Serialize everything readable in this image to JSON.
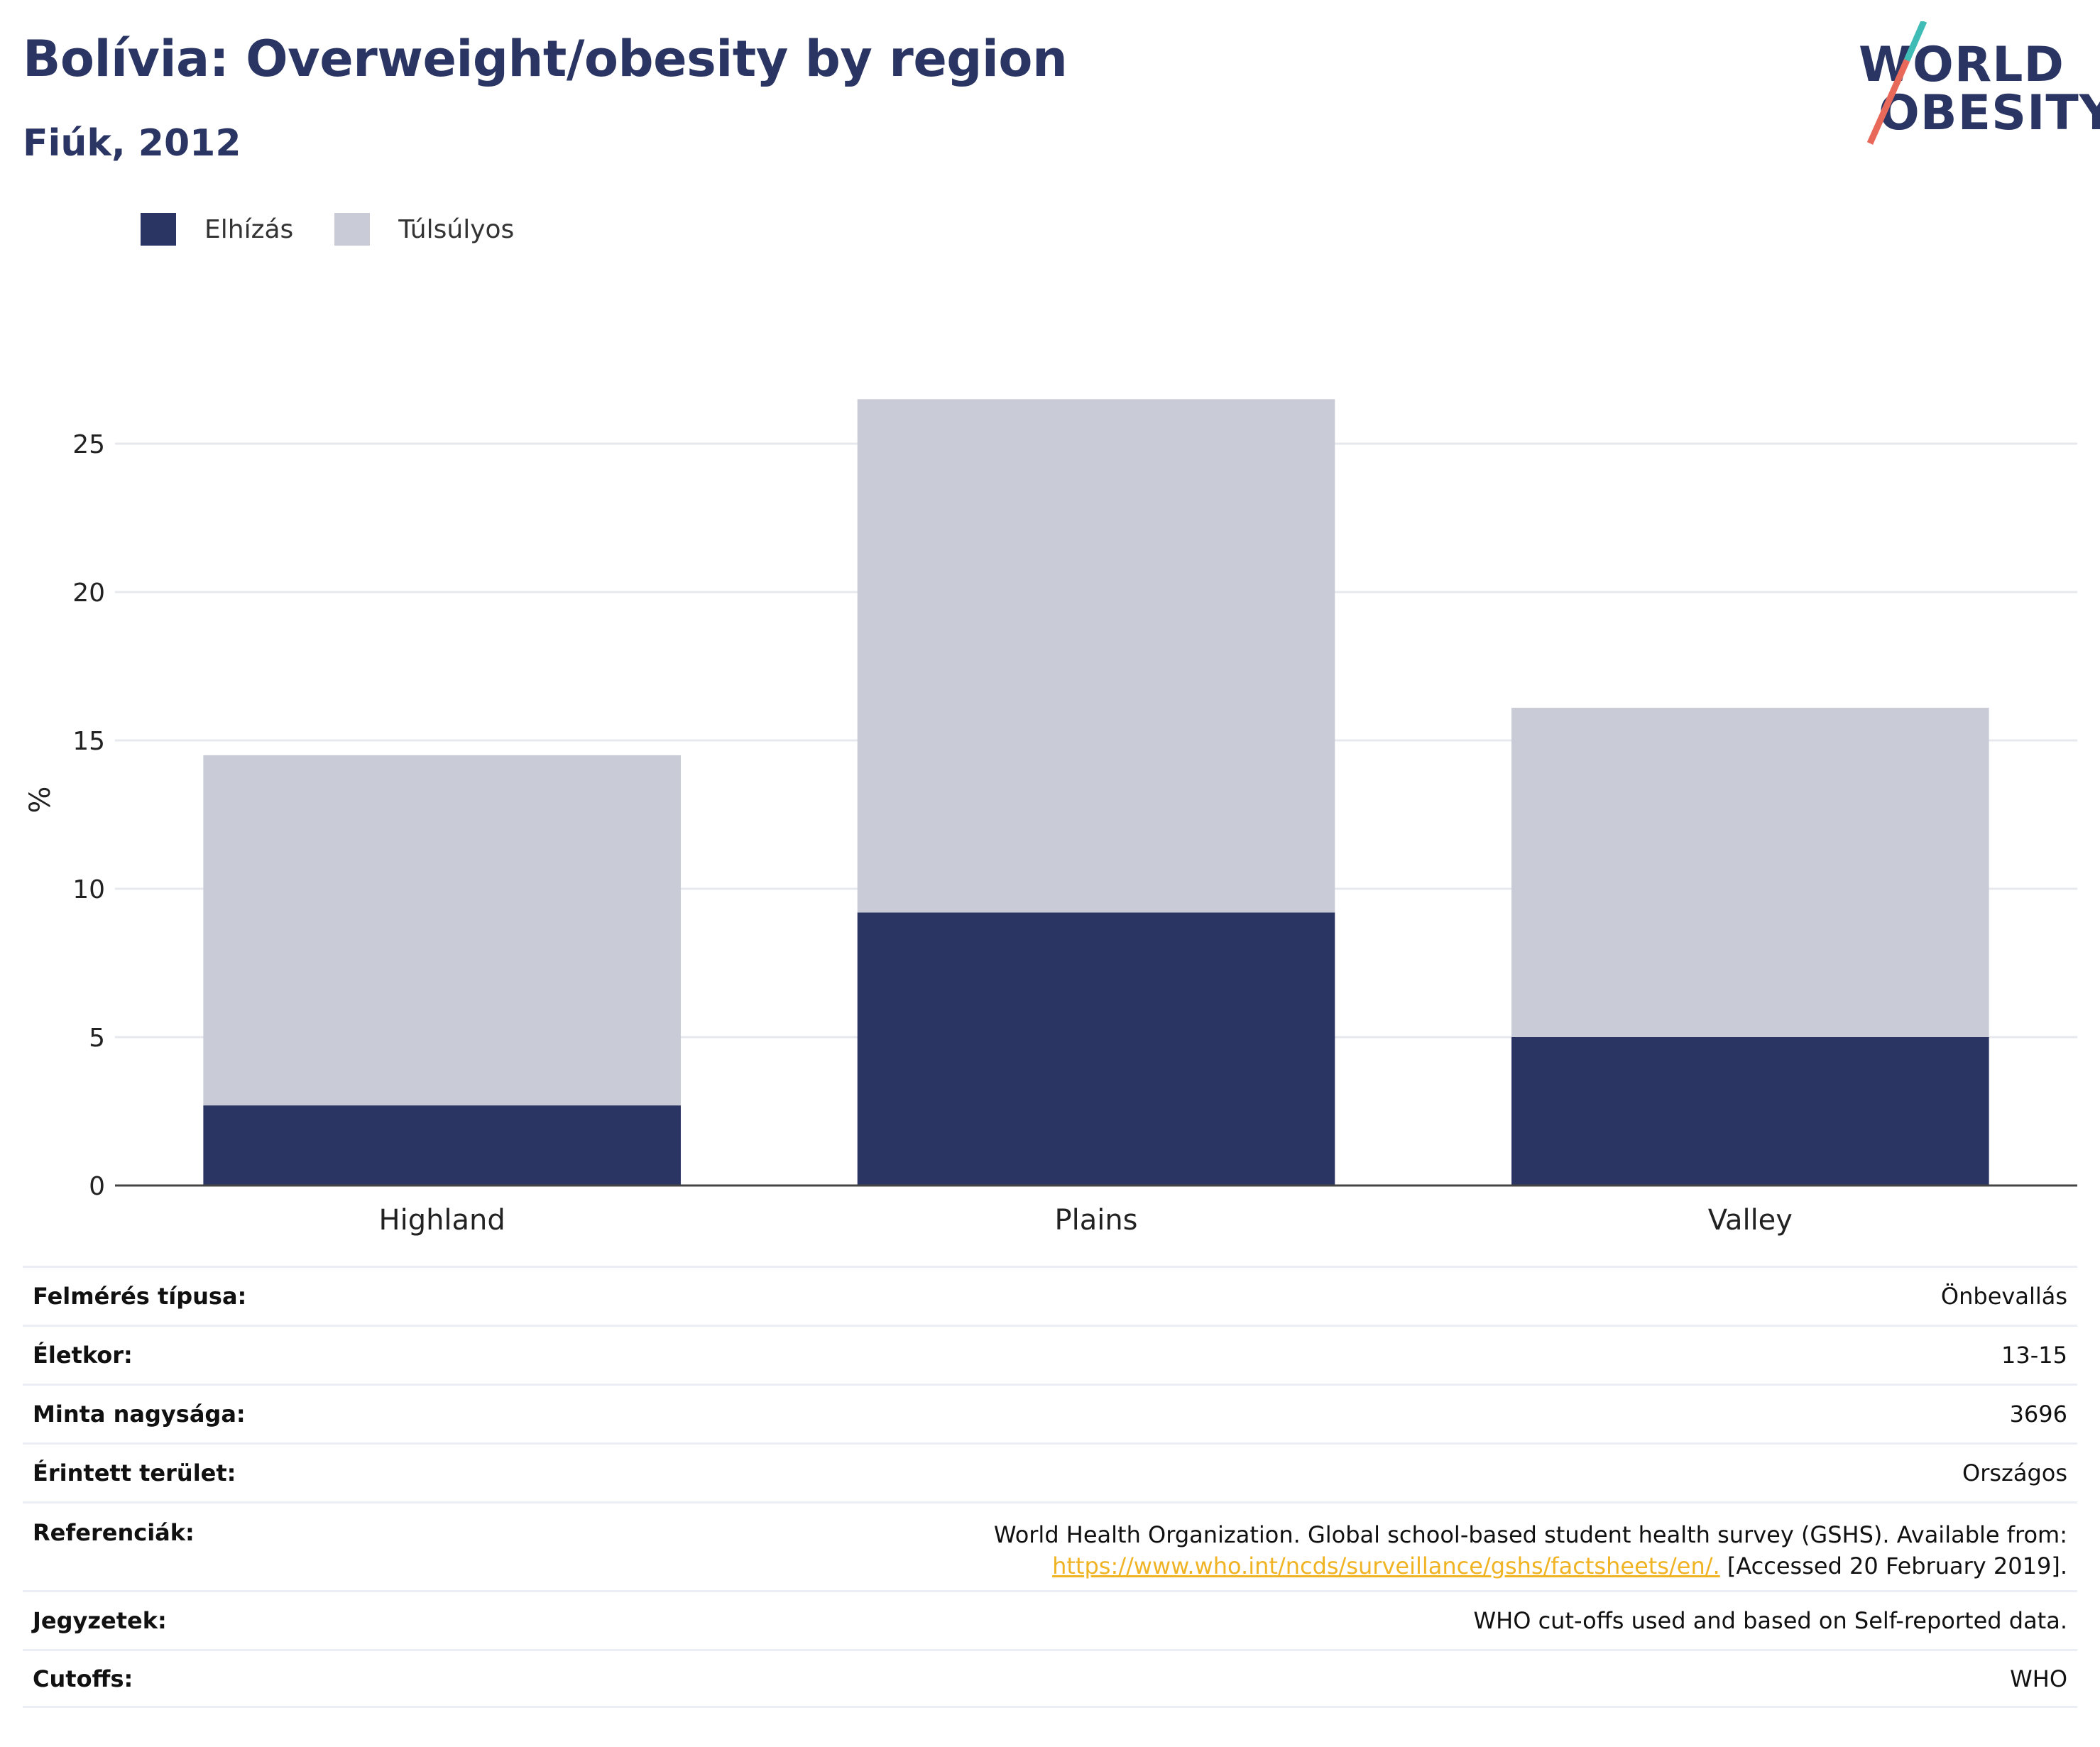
{
  "header": {
    "title": "Bolívia: Overweight/obesity by region",
    "subtitle": "Fiúk, 2012"
  },
  "logo": {
    "line1": "WORLD",
    "line2": "OBESITY"
  },
  "colors": {
    "obesity": "#2a3564",
    "overweight": "#c9cbd6",
    "accent_teal": "#3fbcb5",
    "accent_coral": "#e8685a",
    "link": "#f0b323"
  },
  "chart_data": {
    "type": "bar",
    "stacked": true,
    "categories": [
      "Highland",
      "Plains",
      "Valley"
    ],
    "series": [
      {
        "name": "Elhízás",
        "values": [
          2.7,
          9.2,
          5.0
        ]
      },
      {
        "name": "Túlsúlyos",
        "values": [
          11.8,
          17.3,
          11.1
        ]
      }
    ],
    "ylabel": "%",
    "ylim": [
      0,
      27
    ],
    "yticks": [
      0,
      5,
      10,
      15,
      20,
      25
    ],
    "grid": true,
    "legend_position": "top-left"
  },
  "info": {
    "rows": [
      {
        "label": "Felmérés típusa:",
        "value": "Önbevallás"
      },
      {
        "label": "Életkor:",
        "value": "13-15"
      },
      {
        "label": "Minta nagysága:",
        "value": "3696"
      },
      {
        "label": "Érintett terület:",
        "value": "Országos"
      }
    ],
    "references": {
      "label": "Referenciák:",
      "line1": "World Health Organization. Global school-based student health survey (GSHS). Available from:",
      "link": "https://www.who.int/ncds/surveillance/gshs/factsheets/en/.",
      "after_link": " [Accessed 20 February 2019]."
    },
    "rows2": [
      {
        "label": "Jegyzetek:",
        "value": "WHO cut-offs used and based on Self-reported data."
      },
      {
        "label": "Cutoffs:",
        "value": "WHO"
      }
    ]
  }
}
